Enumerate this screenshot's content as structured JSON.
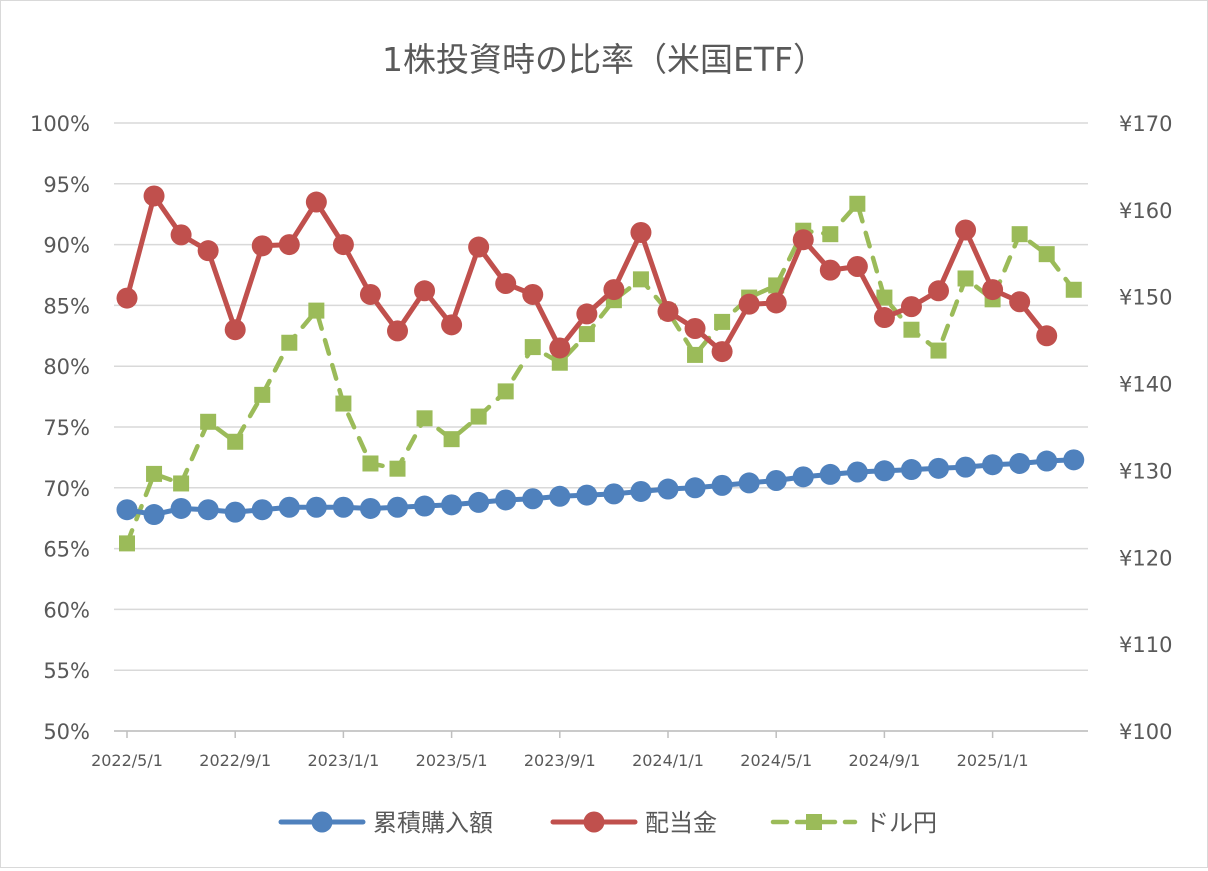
{
  "chart_data": {
    "type": "line",
    "title": "1株投資時の比率（米国ETF）",
    "x": [
      "2022/5/1",
      "2022/6/1",
      "2022/7/1",
      "2022/8/1",
      "2022/9/1",
      "2022/10/1",
      "2022/11/1",
      "2022/12/1",
      "2023/1/1",
      "2023/2/1",
      "2023/3/1",
      "2023/4/1",
      "2023/5/1",
      "2023/6/1",
      "2023/7/1",
      "2023/8/1",
      "2023/9/1",
      "2023/10/1",
      "2023/11/1",
      "2023/12/1",
      "2024/1/1",
      "2024/2/1",
      "2024/3/1",
      "2024/4/1",
      "2024/5/1",
      "2024/6/1",
      "2024/7/1",
      "2024/8/1",
      "2024/9/1",
      "2024/10/1",
      "2024/11/1",
      "2024/12/1",
      "2025/1/1",
      "2025/2/1",
      "2025/3/1",
      "2025/4/1"
    ],
    "x_tick_labels": [
      "2022/5/1",
      "2022/9/1",
      "2023/1/1",
      "2023/5/1",
      "2023/9/1",
      "2024/1/1",
      "2024/5/1",
      "2024/9/1",
      "2025/1/1"
    ],
    "x_tick_indices": [
      0,
      4,
      8,
      12,
      16,
      20,
      24,
      28,
      32
    ],
    "y_left": {
      "ylim": [
        50,
        100
      ],
      "ticks": [
        50,
        55,
        60,
        65,
        70,
        75,
        80,
        85,
        90,
        95,
        100
      ],
      "tick_labels": [
        "50%",
        "55%",
        "60%",
        "65%",
        "70%",
        "75%",
        "80%",
        "85%",
        "90%",
        "95%",
        "100%"
      ]
    },
    "y_right": {
      "ylim": [
        100,
        170
      ],
      "ticks": [
        100,
        110,
        120,
        130,
        140,
        150,
        160,
        170
      ],
      "tick_labels": [
        "¥100",
        "¥110",
        "¥120",
        "¥130",
        "¥140",
        "¥150",
        "¥160",
        "¥170"
      ]
    },
    "grid": true,
    "legend_position": "bottom",
    "series": [
      {
        "name": "累積購入額",
        "axis": "left",
        "color": "#4f81bd",
        "marker": "circle",
        "dashed": false,
        "values": [
          68.2,
          67.8,
          68.3,
          68.2,
          68.0,
          68.2,
          68.4,
          68.4,
          68.4,
          68.3,
          68.4,
          68.5,
          68.6,
          68.8,
          69.0,
          69.1,
          69.3,
          69.4,
          69.5,
          69.7,
          69.9,
          70.0,
          70.2,
          70.4,
          70.6,
          70.9,
          71.1,
          71.3,
          71.4,
          71.5,
          71.6,
          71.7,
          71.9,
          72.0,
          72.2,
          72.3
        ]
      },
      {
        "name": "配当金",
        "axis": "left",
        "color": "#c0504d",
        "marker": "circle",
        "dashed": false,
        "values": [
          85.6,
          94.0,
          90.8,
          89.5,
          83.0,
          89.9,
          90.0,
          93.5,
          90.0,
          85.9,
          82.9,
          86.2,
          83.4,
          89.8,
          86.8,
          85.9,
          81.5,
          84.3,
          86.3,
          91.0,
          84.5,
          83.1,
          81.2,
          85.1,
          85.2,
          90.4,
          87.9,
          88.2,
          84.0,
          84.9,
          86.2,
          91.2,
          86.3,
          85.3,
          82.5,
          null
        ]
      },
      {
        "name": "ドル円",
        "axis": "right",
        "color": "#9bbb59",
        "marker": "square",
        "dashed": true,
        "values": [
          121.6,
          129.6,
          128.5,
          135.6,
          133.3,
          138.7,
          144.7,
          148.4,
          137.7,
          130.8,
          130.2,
          136.0,
          133.6,
          136.2,
          139.1,
          144.2,
          142.4,
          145.7,
          149.6,
          152.0,
          148.3,
          143.3,
          147.1,
          149.9,
          151.3,
          157.6,
          157.2,
          160.7,
          149.9,
          146.2,
          143.8,
          152.1,
          149.7,
          157.2,
          154.9,
          150.8
        ]
      }
    ]
  }
}
